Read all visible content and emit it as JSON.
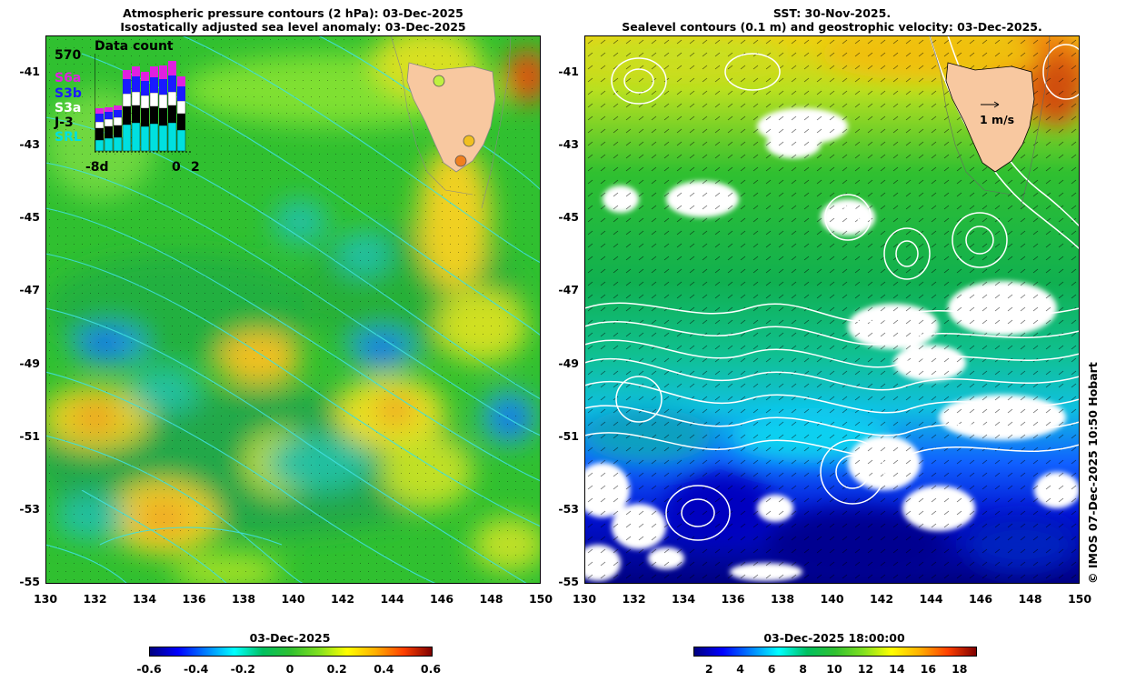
{
  "left_panel": {
    "title_line1": "Atmospheric pressure contours (2 hPa): 03-Dec-2025",
    "title_line2": "Isostatically adjusted sea level anomaly: 03-Dec-2025",
    "y_ticks": [
      "-41",
      "-43",
      "-45",
      "-47",
      "-49",
      "-51",
      "-53",
      "-55"
    ],
    "x_ticks": [
      "130",
      "132",
      "134",
      "136",
      "138",
      "140",
      "142",
      "144",
      "146",
      "148",
      "150"
    ],
    "colorbar": {
      "title": "03-Dec-2025",
      "ticks": [
        "-0.6",
        "-0.4",
        "-0.2",
        "0",
        "0.2",
        "0.4",
        "0.6"
      ],
      "range": [
        -0.6,
        0.6
      ]
    },
    "inset": {
      "title": "Data count",
      "max_label": "570",
      "x_labels": [
        "-8d",
        "0",
        "2"
      ],
      "legend": [
        {
          "name": "S6a",
          "color": "#e020e0"
        },
        {
          "name": "S3b",
          "color": "#1a1aff"
        },
        {
          "name": "S3a",
          "color": "#ffffff"
        },
        {
          "name": "J-3",
          "color": "#000000"
        },
        {
          "name": "SRL",
          "color": "#00e0e0"
        }
      ]
    }
  },
  "right_panel": {
    "title_line1": "SST: 30-Nov-2025.",
    "title_line2": "Sealevel contours (0.1 m) and geostrophic velocity: 03-Dec-2025.",
    "y_ticks": [
      "-41",
      "-43",
      "-45",
      "-47",
      "-49",
      "-51",
      "-53",
      "-55"
    ],
    "x_ticks": [
      "130",
      "132",
      "134",
      "136",
      "138",
      "140",
      "142",
      "144",
      "146",
      "148",
      "150"
    ],
    "velocity_scale_label": "1 m/s",
    "colorbar": {
      "title": "03-Dec-2025 18:00:00",
      "ticks": [
        "2",
        "4",
        "6",
        "8",
        "10",
        "12",
        "14",
        "16",
        "18"
      ],
      "range": [
        1,
        19
      ]
    }
  },
  "credit": "© IMOS 07-Dec-2025 10:50 Hobart",
  "colors": {
    "land": "#f8c8a0",
    "anomaly_mid": "#20c020",
    "contour_cyan": "#40e0e0",
    "contour_white": "#ffffff"
  }
}
